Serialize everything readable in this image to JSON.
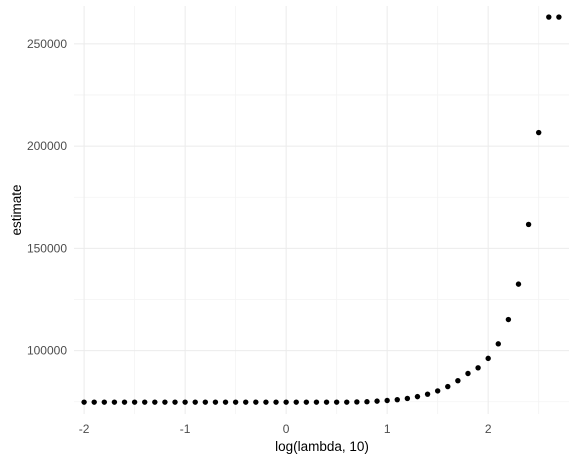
{
  "chart_data": {
    "type": "scatter",
    "title": "",
    "xlabel": "log(lambda, 10)",
    "ylabel": "estimate",
    "xlim": [
      -2.1,
      2.8
    ],
    "ylim": [
      69000,
      268500
    ],
    "x_ticks": [
      -2,
      -1,
      0,
      1,
      2
    ],
    "x_tick_labels": [
      "-2",
      "-1",
      "0",
      "1",
      "2"
    ],
    "y_ticks": [
      100000,
      150000,
      200000,
      250000
    ],
    "y_tick_labels": [
      "100000",
      "150000",
      "200000",
      "250000"
    ],
    "grid": true,
    "legend": "none",
    "series": [
      {
        "x": [
          -2.0,
          -1.9,
          -1.8,
          -1.7,
          -1.6,
          -1.5,
          -1.4,
          -1.3,
          -1.2,
          -1.1,
          -1.0,
          -0.9,
          -0.8,
          -0.7,
          -0.6,
          -0.5,
          -0.4,
          -0.3,
          -0.2,
          -0.1,
          0.0,
          0.1,
          0.2,
          0.3,
          0.4,
          0.5,
          0.6,
          0.7,
          0.8,
          0.9,
          1.0,
          1.1,
          1.2,
          1.3,
          1.4,
          1.5,
          1.6,
          1.7,
          1.8,
          1.9,
          2.0,
          2.1,
          2.2,
          2.3,
          2.4,
          2.5,
          2.6,
          2.7
        ],
        "y": [
          74800,
          74800,
          74800,
          74800,
          74800,
          74800,
          74800,
          74800,
          74800,
          74800,
          74800,
          74800,
          74800,
          74800,
          74800,
          74800,
          74800,
          74800,
          74800,
          74800,
          74800,
          74800,
          74800,
          74800,
          74800,
          74800,
          74800,
          74900,
          75000,
          75300,
          75600,
          76000,
          76600,
          77500,
          78700,
          80300,
          82400,
          85300,
          88800,
          91600,
          96200,
          103300,
          115200,
          132500,
          161700,
          206600,
          263100,
          263100
        ]
      }
    ]
  }
}
